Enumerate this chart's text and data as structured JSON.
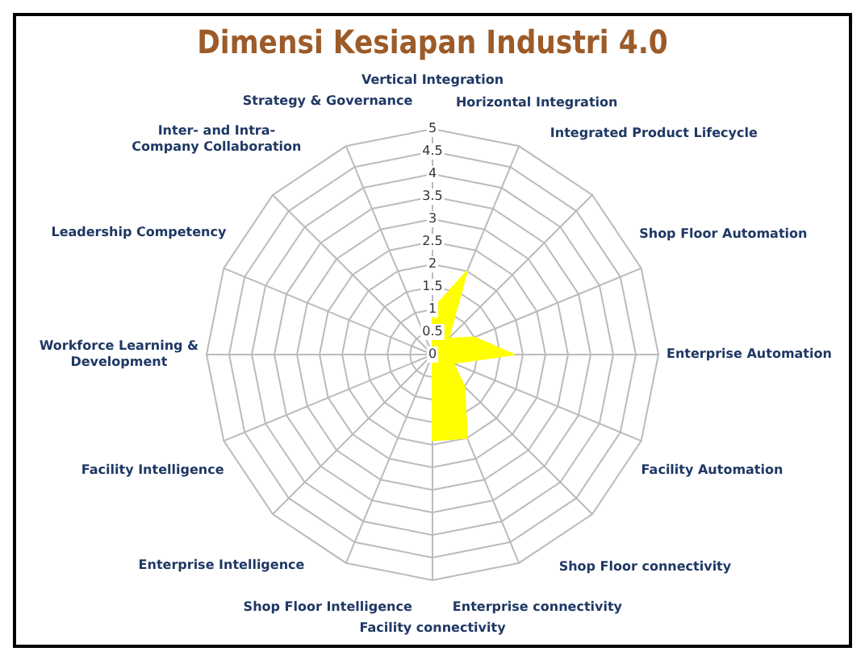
{
  "chart_data": {
    "type": "radar",
    "title": "Dimensi Kesiapan Industri 4.0",
    "categories": [
      "Vertical Integration",
      "Horizontal Integration",
      "Integrated Product Lifecycle",
      "Shop Floor Automation",
      "Enterprise Automation",
      "Facility Automation",
      "Shop Floor connectivity",
      "Enterprise connectivity",
      "Facility connectivity",
      "Shop Floor Intelligence",
      "Enterprise Intelligence",
      "Facility Intelligence",
      "Workforce Learning & Development",
      "Leadership Competency",
      "Inter- and Intra- Company Collaboration",
      "Strategy & Governance"
    ],
    "series": [
      {
        "color": "#ffff00",
        "values": [
          1,
          2,
          0.5,
          1,
          1.8,
          0.5,
          1,
          2,
          1.9,
          0,
          0,
          0,
          0,
          0,
          0,
          0
        ]
      }
    ],
    "ylim": [
      0,
      5
    ],
    "yticks": [
      0,
      0.5,
      1,
      1.5,
      2,
      2.5,
      3,
      3.5,
      4,
      4.5,
      5
    ],
    "grid": true,
    "legend": false,
    "marker": "none"
  }
}
